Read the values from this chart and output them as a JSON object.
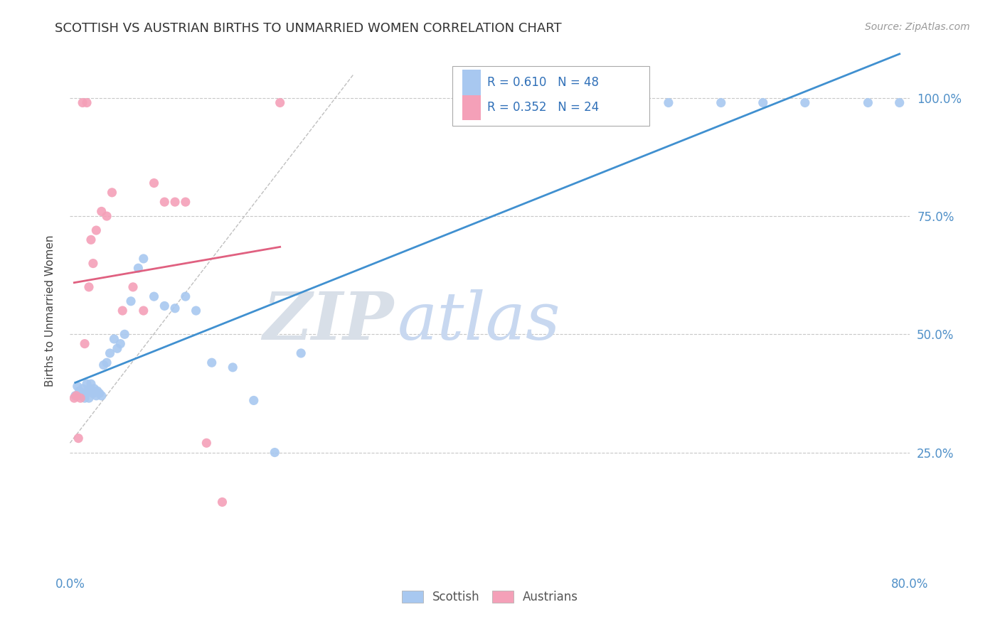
{
  "title": "SCOTTISH VS AUSTRIAN BIRTHS TO UNMARRIED WOMEN CORRELATION CHART",
  "source": "Source: ZipAtlas.com",
  "ylabel": "Births to Unmarried Women",
  "xlim": [
    0.0,
    0.8
  ],
  "ylim": [
    0.0,
    1.1
  ],
  "scottish_R": 0.61,
  "scottish_N": 48,
  "austrians_R": 0.352,
  "austrians_N": 24,
  "scottish_color": "#a8c8f0",
  "austrians_color": "#f4a0b8",
  "scottish_line_color": "#4090d0",
  "austrians_line_color": "#e06080",
  "background_color": "#ffffff",
  "grid_color": "#c8c8c8",
  "scottish_x": [
    0.005,
    0.007,
    0.009,
    0.01,
    0.012,
    0.013,
    0.014,
    0.015,
    0.016,
    0.017,
    0.018,
    0.019,
    0.02,
    0.021,
    0.022,
    0.023,
    0.025,
    0.026,
    0.028,
    0.03,
    0.032,
    0.035,
    0.038,
    0.042,
    0.045,
    0.048,
    0.052,
    0.058,
    0.065,
    0.07,
    0.08,
    0.09,
    0.1,
    0.11,
    0.12,
    0.135,
    0.155,
    0.175,
    0.195,
    0.22,
    0.5,
    0.54,
    0.57,
    0.62,
    0.66,
    0.7,
    0.76,
    0.79
  ],
  "scottish_y": [
    0.37,
    0.39,
    0.38,
    0.37,
    0.385,
    0.375,
    0.365,
    0.375,
    0.395,
    0.38,
    0.365,
    0.385,
    0.395,
    0.38,
    0.375,
    0.385,
    0.37,
    0.38,
    0.375,
    0.37,
    0.435,
    0.44,
    0.46,
    0.49,
    0.47,
    0.48,
    0.5,
    0.57,
    0.64,
    0.66,
    0.58,
    0.56,
    0.555,
    0.58,
    0.55,
    0.44,
    0.43,
    0.36,
    0.25,
    0.46,
    0.99,
    0.99,
    0.99,
    0.99,
    0.99,
    0.99,
    0.99,
    0.99
  ],
  "austrians_x": [
    0.004,
    0.006,
    0.008,
    0.01,
    0.012,
    0.014,
    0.016,
    0.018,
    0.02,
    0.022,
    0.025,
    0.03,
    0.035,
    0.04,
    0.05,
    0.06,
    0.07,
    0.08,
    0.09,
    0.1,
    0.11,
    0.13,
    0.145,
    0.2
  ],
  "austrians_y": [
    0.365,
    0.37,
    0.28,
    0.365,
    0.99,
    0.48,
    0.99,
    0.6,
    0.7,
    0.65,
    0.72,
    0.76,
    0.75,
    0.8,
    0.55,
    0.6,
    0.55,
    0.82,
    0.78,
    0.78,
    0.78,
    0.27,
    0.145,
    0.99
  ],
  "ref_line_x": [
    0.0,
    0.27
  ],
  "ref_line_y": [
    0.27,
    1.05
  ]
}
